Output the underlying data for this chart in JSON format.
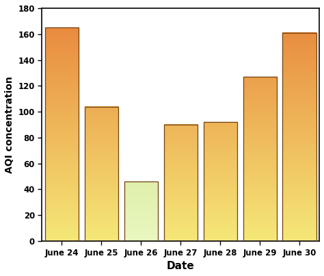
{
  "categories": [
    "June 24",
    "June 25",
    "June 26",
    "June 27",
    "June 28",
    "June 29",
    "June 30"
  ],
  "values": [
    165,
    104,
    46,
    90,
    92,
    127,
    161
  ],
  "bar_top_colors": [
    "#E8833A",
    "#E8833A",
    "#C8D870",
    "#E8833A",
    "#E8833A",
    "#E8833A",
    "#E8833A"
  ],
  "bar_bottom_colors": [
    "#F5E878",
    "#F5E878",
    "#E8F8C0",
    "#F5E878",
    "#F5E878",
    "#F5E878",
    "#F5E878"
  ],
  "edge_color": "#704010",
  "xlabel": "Date",
  "ylabel": "AQI concentration",
  "ylim": [
    0,
    180
  ],
  "yticks": [
    0,
    20,
    40,
    60,
    80,
    100,
    120,
    140,
    160,
    180
  ],
  "figsize": [
    4.74,
    4.03
  ],
  "dpi": 100,
  "bar_width": 0.85
}
